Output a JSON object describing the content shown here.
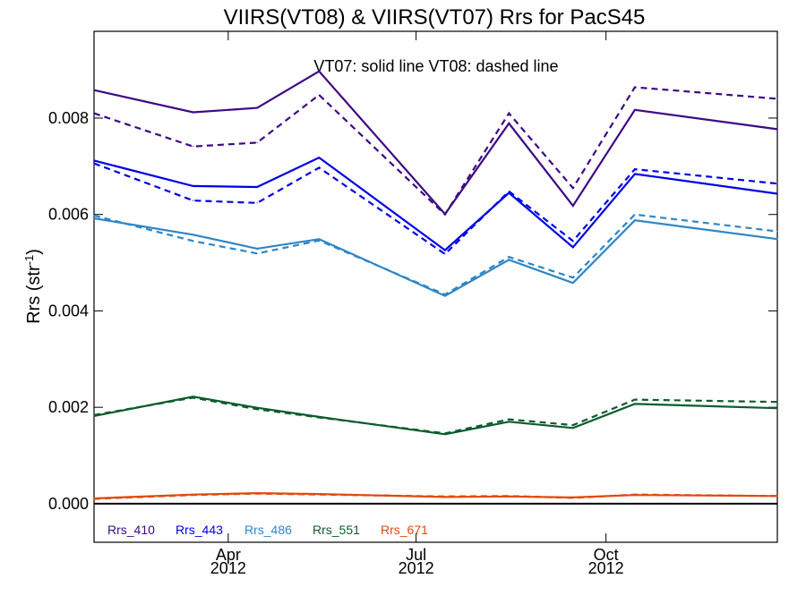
{
  "chart_data": {
    "type": "line",
    "title": "VIIRS(VT08) & VIIRS(VT07)  Rrs for PacS45",
    "annotation": "VT07: solid line   VT08: dashed line",
    "ylabel": "Rrs (str",
    "ylabel_sup": "-1",
    "ylabel_close": ")",
    "xlabel": "",
    "ylim": [
      -0.0008,
      0.0098
    ],
    "xlim": [
      "2012-01-27",
      "2012-12-23"
    ],
    "grid": false,
    "legend_position": "bottom-left inside",
    "y_ticks": [
      {
        "value": 0.0,
        "label": "0.000"
      },
      {
        "value": 0.002,
        "label": "0.002"
      },
      {
        "value": 0.004,
        "label": "0.004"
      },
      {
        "value": 0.006,
        "label": "0.006"
      },
      {
        "value": 0.008,
        "label": "0.008"
      }
    ],
    "x_ticks": [
      {
        "date": "2012-04-01",
        "label": "Apr",
        "year": "2012"
      },
      {
        "date": "2012-07-01",
        "label": "Jul",
        "year": "2012"
      },
      {
        "date": "2012-10-01",
        "label": "Oct",
        "year": "2012"
      }
    ],
    "x": [
      "2012-01-27",
      "2012-03-15",
      "2012-04-15",
      "2012-05-15",
      "2012-07-15",
      "2012-08-15",
      "2012-09-15",
      "2012-10-15",
      "2012-12-23"
    ],
    "zero_line": 0,
    "series": [
      {
        "name": "Rrs_410",
        "color": "#3d0a85",
        "style": "solid",
        "values": [
          0.00858,
          0.00812,
          0.00821,
          0.00897,
          0.00601,
          0.00789,
          0.00618,
          0.00817,
          0.00777
        ]
      },
      {
        "name": "Rrs_410",
        "color": "#3d0a85",
        "style": "dashed",
        "values": [
          0.0081,
          0.00741,
          0.00749,
          0.00848,
          0.006,
          0.0081,
          0.00655,
          0.00864,
          0.0084
        ]
      },
      {
        "name": "Rrs_443",
        "color": "#0000e6",
        "style": "solid",
        "values": [
          0.00712,
          0.00659,
          0.00657,
          0.00718,
          0.00526,
          0.00645,
          0.00532,
          0.00684,
          0.00643
        ]
      },
      {
        "name": "Rrs_443",
        "color": "#0000e6",
        "style": "dashed",
        "values": [
          0.00706,
          0.00629,
          0.00624,
          0.00697,
          0.00518,
          0.00648,
          0.00545,
          0.00694,
          0.00664
        ]
      },
      {
        "name": "Rrs_486",
        "color": "#2e86c6",
        "style": "solid",
        "values": [
          0.00592,
          0.00558,
          0.00529,
          0.00549,
          0.00431,
          0.00506,
          0.00458,
          0.00588,
          0.00549
        ]
      },
      {
        "name": "Rrs_486",
        "color": "#2e86c6",
        "style": "dashed",
        "values": [
          0.00598,
          0.00545,
          0.00519,
          0.00546,
          0.00434,
          0.00512,
          0.00469,
          0.006,
          0.00565
        ]
      },
      {
        "name": "Rrs_551",
        "color": "#0b5c2c",
        "style": "solid",
        "values": [
          0.00182,
          0.00222,
          0.00199,
          0.0018,
          0.00144,
          0.0017,
          0.00157,
          0.00207,
          0.00198
        ]
      },
      {
        "name": "Rrs_551",
        "color": "#0b5c2c",
        "style": "dashed",
        "values": [
          0.00184,
          0.0022,
          0.00196,
          0.00179,
          0.00146,
          0.00175,
          0.00163,
          0.00216,
          0.00211
        ]
      },
      {
        "name": "Rrs_671",
        "color": "#e04a10",
        "style": "solid",
        "values": [
          0.00011,
          0.00019,
          0.00022,
          0.0002,
          0.00014,
          0.00015,
          0.00013,
          0.00018,
          0.00016
        ]
      },
      {
        "name": "Rrs_671",
        "color": "#e04a10",
        "style": "dashed",
        "values": [
          0.0001,
          0.00018,
          0.00021,
          0.00019,
          0.00015,
          0.00016,
          0.00012,
          0.00019,
          0.00016
        ]
      }
    ],
    "legend": [
      {
        "label": "Rrs_410",
        "color": "#3d0a85"
      },
      {
        "label": "Rrs_443",
        "color": "#0000e6"
      },
      {
        "label": "Rrs_486",
        "color": "#2e86c6"
      },
      {
        "label": "Rrs_551",
        "color": "#0b5c2c"
      },
      {
        "label": "Rrs_671",
        "color": "#e04a10"
      }
    ]
  }
}
